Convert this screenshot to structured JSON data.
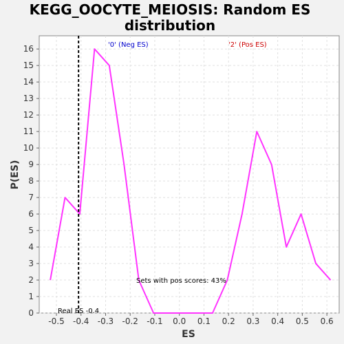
{
  "chart_data": {
    "type": "line",
    "title_lines": [
      "KEGG_OOCYTE_MEIOSIS: Random ES",
      "distribution"
    ],
    "xlabel": "ES",
    "ylabel": "P(ES)",
    "xlim": [
      -0.57,
      0.65
    ],
    "ylim": [
      0,
      16.8
    ],
    "x_ticks": [
      -0.5,
      -0.4,
      -0.3,
      -0.2,
      -0.1,
      0.0,
      0.1,
      0.2,
      0.3,
      0.4,
      0.5,
      0.6
    ],
    "x_tick_labels": [
      "-0.5",
      "-0.4",
      "-0.3",
      "-0.2",
      "-0.1",
      "0.0",
      "0.1",
      "0.2",
      "0.3",
      "0.4",
      "0.5",
      "0.6"
    ],
    "y_ticks": [
      0,
      1,
      2,
      3,
      4,
      5,
      6,
      7,
      8,
      9,
      10,
      11,
      12,
      13,
      14,
      15,
      16
    ],
    "y_tick_labels": [
      "0",
      "1",
      "2",
      "3",
      "4",
      "5",
      "6",
      "7",
      "8",
      "9",
      "10",
      "11",
      "12",
      "13",
      "14",
      "15",
      "16"
    ],
    "grid": true,
    "series": [
      {
        "color": "#ff33ff",
        "x": [
          -0.525,
          -0.465,
          -0.405,
          -0.345,
          -0.285,
          -0.225,
          -0.165,
          -0.105,
          -0.045,
          0.015,
          0.075,
          0.135,
          0.195,
          0.255,
          0.315,
          0.375,
          0.435,
          0.495,
          0.555,
          0.615
        ],
        "y": [
          2,
          7,
          6,
          16,
          15,
          9,
          2,
          0,
          0,
          0,
          0,
          0,
          2,
          6,
          11,
          9,
          4,
          6,
          3,
          2
        ]
      }
    ],
    "real_es": {
      "value": -0.41,
      "label": "Real ES -0.4"
    },
    "annotations": {
      "neg_label": "'0' (Neg ES)",
      "pos_label": "'2' (Pos ES)",
      "pos_scores": "Sets with pos scores: 43%"
    },
    "colors": {
      "neg_label": "#0000cc",
      "pos_label": "#cc0000",
      "plot_bg": "#ffffff",
      "grid": "#e0e0e0"
    }
  }
}
